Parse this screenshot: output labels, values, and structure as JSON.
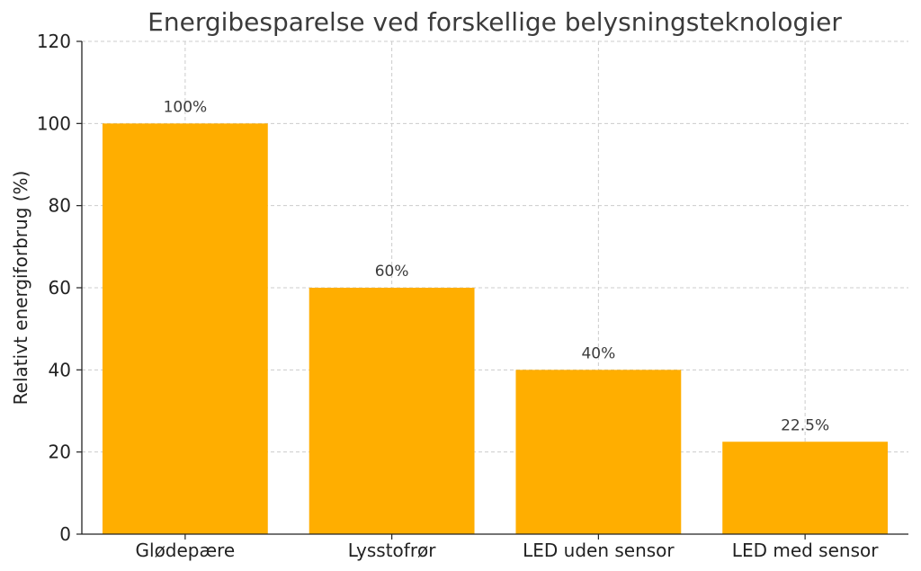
{
  "chart_data": {
    "type": "bar",
    "title": "Energibesparelse ved forskellige belysningsteknologier",
    "xlabel": "",
    "ylabel": "Relativt energiforbrug (%)",
    "categories": [
      "Glødepære",
      "Lysstofrør",
      "LED uden sensor",
      "LED med sensor"
    ],
    "values": [
      100,
      60,
      40,
      22.5
    ],
    "data_labels": [
      "100%",
      "60%",
      "40%",
      "22.5%"
    ],
    "ylim": [
      0,
      120
    ],
    "yticks": [
      0,
      20,
      40,
      60,
      80,
      100,
      120
    ],
    "grid": true,
    "bar_color": "#FFAE00"
  }
}
